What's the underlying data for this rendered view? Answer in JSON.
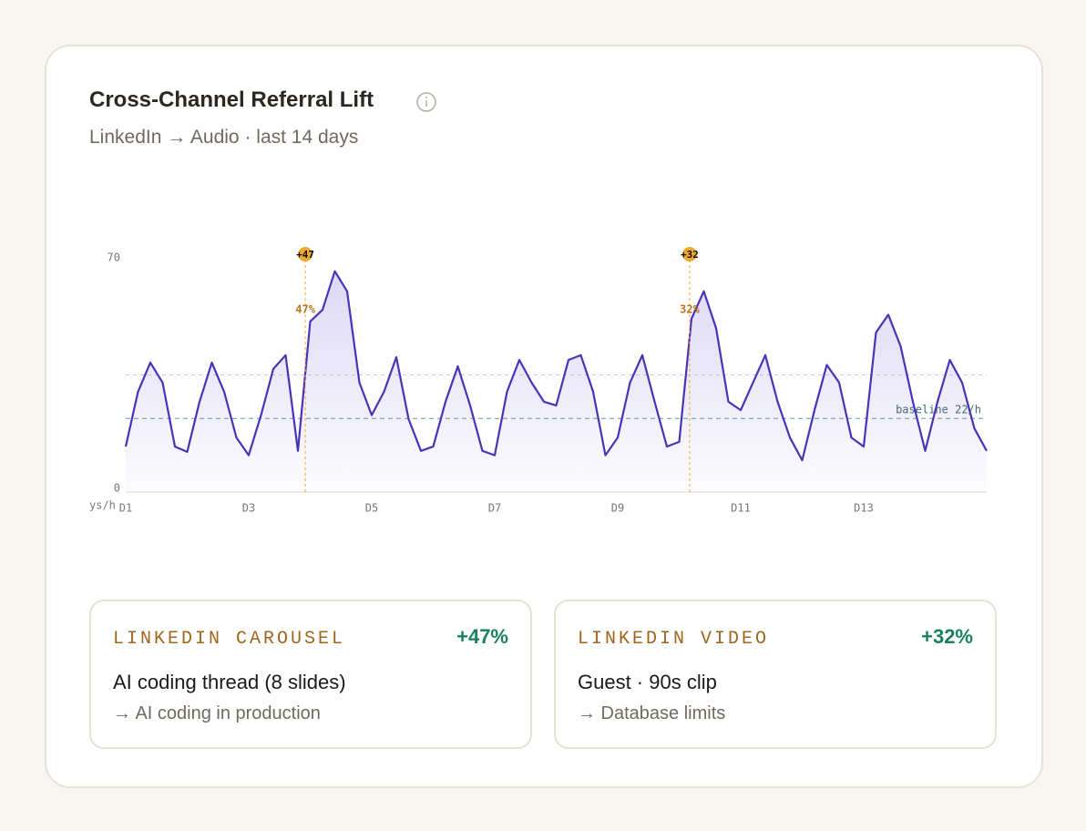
{
  "header": {
    "title": "Cross-Channel Referral Lift",
    "subtitle": "LinkedIn → Audio · last 14 days"
  },
  "chart_data": {
    "type": "line",
    "y_label": "ys/h",
    "x": [
      1,
      1.2,
      1.4,
      1.6,
      1.8,
      2,
      2.2,
      2.4,
      2.6,
      2.8,
      3,
      3.2,
      3.4,
      3.6,
      3.8,
      4,
      4.2,
      4.4,
      4.6,
      4.8,
      5,
      5.2,
      5.4,
      5.6,
      5.8,
      6,
      6.2,
      6.4,
      6.6,
      6.8,
      7,
      7.2,
      7.4,
      7.6,
      7.8,
      8,
      8.2,
      8.4,
      8.6,
      8.8,
      9,
      9.2,
      9.4,
      9.6,
      9.8,
      10,
      10.2,
      10.4,
      10.6,
      10.8,
      11,
      11.2,
      11.4,
      11.6,
      11.8,
      12,
      12.2,
      12.4,
      12.6,
      12.8,
      13,
      13.2,
      13.4,
      13.6,
      13.8,
      14,
      14.2,
      14.4,
      14.6,
      14.8,
      15
    ],
    "values": [
      13.6,
      30,
      38.7,
      32.7,
      13.6,
      12,
      27,
      38.7,
      30,
      16.3,
      11,
      23,
      36.8,
      40.9,
      12.3,
      51,
      54.5,
      66,
      60,
      32.7,
      23,
      30,
      40.3,
      21.8,
      12.3,
      13.6,
      27,
      37.6,
      25.9,
      12.3,
      11,
      30,
      39.5,
      32.7,
      27,
      25.9,
      39.5,
      40.9,
      30,
      11,
      16.3,
      32.7,
      40.9,
      27,
      13.6,
      15,
      51.8,
      60,
      49,
      27,
      24.5,
      32.7,
      40.9,
      27,
      16.3,
      9.5,
      24.5,
      38,
      32.7,
      16.3,
      13.6,
      47.7,
      53,
      43.6,
      27,
      12.3,
      27,
      39.5,
      32.7,
      19,
      12.3
    ],
    "color": "#4b32b8",
    "xlim": [
      1,
      15
    ],
    "xticks": [
      {
        "value": 1,
        "label": "D1"
      },
      {
        "value": 3,
        "label": "D3"
      },
      {
        "value": 5,
        "label": "D5"
      },
      {
        "value": 7,
        "label": "D7"
      },
      {
        "value": 9,
        "label": "D9"
      },
      {
        "value": 11,
        "label": "D11"
      },
      {
        "value": 13,
        "label": "D13"
      }
    ],
    "ylim": [
      0,
      70
    ],
    "yticks": [
      0,
      70
    ],
    "baseline": {
      "value": 22,
      "label": "baseline 22/h"
    },
    "upper_line": 35,
    "annotations": [
      {
        "x": 3.92,
        "marker": "+47",
        "label": "47%"
      },
      {
        "x": 10.17,
        "marker": "+32",
        "label": "32%"
      }
    ]
  },
  "cards": [
    {
      "channel": "LINKEDIN CAROUSEL",
      "lift": "+47%",
      "title": "AI coding thread (8 slides)",
      "target": "→ AI coding in production"
    },
    {
      "channel": "LINKEDIN VIDEO",
      "lift": "+32%",
      "title": "Guest · 90s clip",
      "target": "→ Database limits"
    }
  ]
}
